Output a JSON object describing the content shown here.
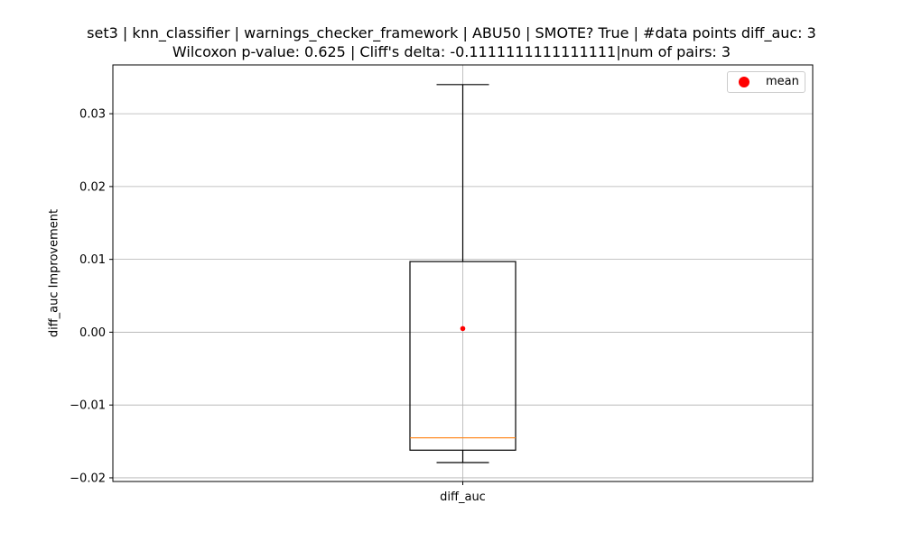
{
  "chart_data": {
    "type": "box",
    "title_line1": "set3 | knn_classifier | warnings_checker_framework | ABU50 | SMOTE? True | #data points diff_auc: 3",
    "title_line2": "Wilcoxon p-value: 0.625 | Cliff's delta: -0.1111111111111111|num of pairs: 3",
    "xlabel": "",
    "ylabel": "diff_auc Improvement",
    "categories": [
      "diff_auc"
    ],
    "ylim": [
      -0.0205,
      0.0367
    ],
    "y_ticks": [
      -0.02,
      -0.01,
      0.0,
      0.01,
      0.02,
      0.03
    ],
    "y_tick_labels": [
      "−0.02",
      "−0.01",
      "0.00",
      "0.01",
      "0.02",
      "0.03"
    ],
    "grid": true,
    "legend": {
      "placement": "top-right",
      "entries": [
        {
          "label": "mean",
          "marker": "circle",
          "color": "#ff0000"
        }
      ]
    },
    "series": [
      {
        "category": "diff_auc",
        "whisker_low": -0.0179,
        "q1": -0.0162,
        "median": -0.0145,
        "q3": 0.0097,
        "whisker_high": 0.034,
        "mean": 0.0005
      }
    ],
    "colors": {
      "box": "#000000",
      "median": "#ff7f0e",
      "mean": "#ff0000",
      "grid": "#b0b0b0"
    }
  }
}
